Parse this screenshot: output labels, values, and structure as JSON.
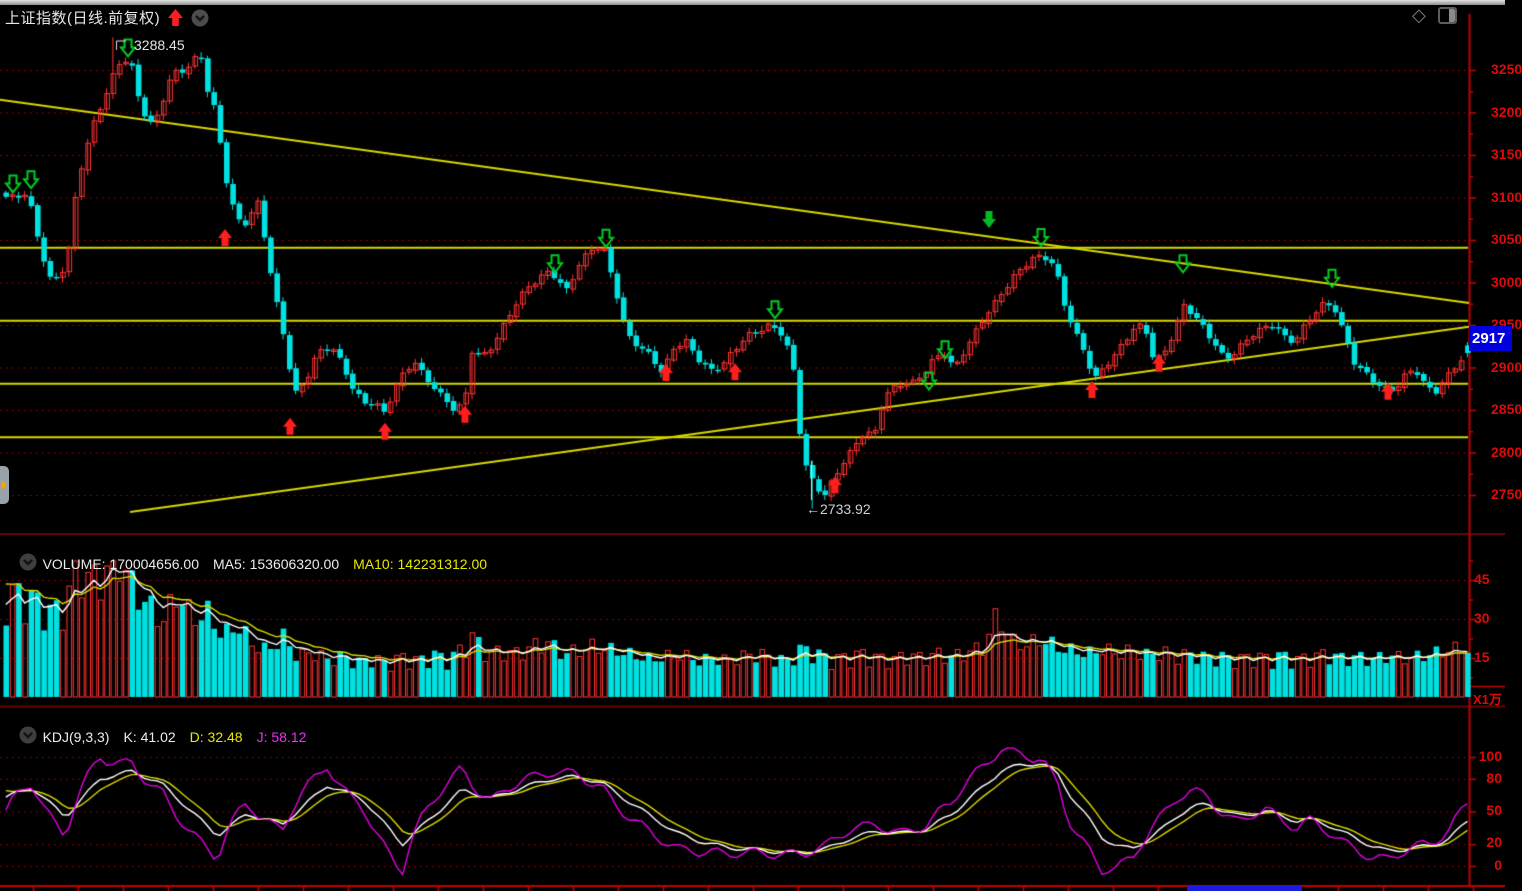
{
  "titlebar": {
    "title": "上证指数(日线.前复权)",
    "signal_arrow_icon": "block-up-arrow-red",
    "collapse_icon": "chevron-down-circle",
    "diamond_icon": "◇",
    "layout_icon": "window-split"
  },
  "main_chart": {
    "high_annotation": "3288.45",
    "low_annotation": "←2733.92",
    "price_tag": "2917",
    "y_axis_labels": [
      "3250",
      "3200",
      "3150",
      "3100",
      "3050",
      "3000",
      "2950",
      "2900",
      "2850",
      "2800",
      "2750"
    ]
  },
  "volume_panel": {
    "volume_label": "VOLUME:",
    "volume_value": "170004656.00",
    "ma5_label": "MA5:",
    "ma5_value": "153606320.00",
    "ma10_label": "MA10:",
    "ma10_value": "142231312.00",
    "y_axis_labels": [
      "45",
      "30",
      "15"
    ],
    "unit_label": "X1万"
  },
  "kdj_panel": {
    "indicator_label": "KDJ(9,3,3)",
    "k_label": "K:",
    "k_value": "41.02",
    "d_label": "D:",
    "d_value": "32.48",
    "j_label": "J:",
    "j_value": "58.12",
    "y_axis_labels": [
      "100",
      "80",
      "50",
      "20",
      "0"
    ]
  },
  "colors": {
    "up": "#ff3232",
    "down": "#00e1e1",
    "ma5": "#ffffff",
    "ma10": "#d8d800",
    "k": "#ffffff",
    "d": "#d8d800",
    "j": "#e000e0",
    "grid": "#b00000",
    "axis": "#c00000",
    "label": "#dd0a0a",
    "trend": "#d8d800",
    "tag_bg": "#0000de",
    "buy_arrow": "#ff1e1e",
    "sell_arrow": "#00cc22"
  },
  "chart_data": {
    "type": "candlestick",
    "instrument": "上证指数",
    "period": "日线",
    "adjustment": "前复权",
    "price_range": [
      2750,
      3250
    ],
    "grid_step": 50,
    "high": 3288.45,
    "low": 2733.92,
    "last": 2917,
    "volume": 170004656.0,
    "volume_ma5": 153606320.0,
    "volume_ma10": 142231312.0,
    "kdj": {
      "params": [
        9,
        3,
        3
      ],
      "k": 41.02,
      "d": 32.48,
      "j": 58.12
    },
    "close_anchors": [
      [
        0,
        3102
      ],
      [
        12,
        3098
      ],
      [
        25,
        3103
      ],
      [
        38,
        3040
      ],
      [
        48,
        3005
      ],
      [
        58,
        3010
      ],
      [
        66,
        3035
      ],
      [
        72,
        3092
      ],
      [
        80,
        3140
      ],
      [
        90,
        3180
      ],
      [
        98,
        3205
      ],
      [
        106,
        3230
      ],
      [
        113,
        3252
      ],
      [
        120,
        3265
      ],
      [
        128,
        3262
      ],
      [
        138,
        3205
      ],
      [
        148,
        3185
      ],
      [
        157,
        3195
      ],
      [
        165,
        3235
      ],
      [
        173,
        3248
      ],
      [
        182,
        3252
      ],
      [
        190,
        3262
      ],
      [
        198,
        3268
      ],
      [
        205,
        3226
      ],
      [
        212,
        3202
      ],
      [
        223,
        3123
      ],
      [
        232,
        3083
      ],
      [
        240,
        3066
      ],
      [
        248,
        3083
      ],
      [
        256,
        3095
      ],
      [
        264,
        3040
      ],
      [
        272,
        2985
      ],
      [
        282,
        2930
      ],
      [
        292,
        2868
      ],
      [
        302,
        2882
      ],
      [
        312,
        2912
      ],
      [
        322,
        2925
      ],
      [
        332,
        2920
      ],
      [
        342,
        2895
      ],
      [
        352,
        2870
      ],
      [
        362,
        2858
      ],
      [
        372,
        2862
      ],
      [
        382,
        2848
      ],
      [
        392,
        2875
      ],
      [
        402,
        2892
      ],
      [
        412,
        2905
      ],
      [
        422,
        2888
      ],
      [
        432,
        2878
      ],
      [
        442,
        2865
      ],
      [
        452,
        2852
      ],
      [
        462,
        2856
      ],
      [
        470,
        2920
      ],
      [
        480,
        2910
      ],
      [
        490,
        2925
      ],
      [
        500,
        2948
      ],
      [
        512,
        2975
      ],
      [
        524,
        2992
      ],
      [
        536,
        3002
      ],
      [
        548,
        3012
      ],
      [
        556,
        3002
      ],
      [
        564,
        2992
      ],
      [
        576,
        3022
      ],
      [
        588,
        3038
      ],
      [
        600,
        3042
      ],
      [
        612,
        2995
      ],
      [
        624,
        2940
      ],
      [
        636,
        2928
      ],
      [
        648,
        2915
      ],
      [
        660,
        2892
      ],
      [
        672,
        2922
      ],
      [
        684,
        2930
      ],
      [
        696,
        2912
      ],
      [
        708,
        2898
      ],
      [
        720,
        2902
      ],
      [
        732,
        2918
      ],
      [
        744,
        2935
      ],
      [
        756,
        2945
      ],
      [
        768,
        2952
      ],
      [
        780,
        2940
      ],
      [
        790,
        2905
      ],
      [
        800,
        2792
      ],
      [
        812,
        2760
      ],
      [
        822,
        2752
      ],
      [
        832,
        2772
      ],
      [
        842,
        2792
      ],
      [
        852,
        2805
      ],
      [
        862,
        2822
      ],
      [
        872,
        2818
      ],
      [
        882,
        2868
      ],
      [
        892,
        2878
      ],
      [
        902,
        2885
      ],
      [
        912,
        2882
      ],
      [
        922,
        2892
      ],
      [
        932,
        2908
      ],
      [
        942,
        2916
      ],
      [
        952,
        2900
      ],
      [
        962,
        2922
      ],
      [
        972,
        2940
      ],
      [
        982,
        2958
      ],
      [
        992,
        2972
      ],
      [
        1002,
        2990
      ],
      [
        1012,
        3008
      ],
      [
        1022,
        3022
      ],
      [
        1032,
        3032
      ],
      [
        1042,
        3030
      ],
      [
        1052,
        3018
      ],
      [
        1062,
        2972
      ],
      [
        1072,
        2942
      ],
      [
        1082,
        2920
      ],
      [
        1092,
        2888
      ],
      [
        1102,
        2902
      ],
      [
        1112,
        2912
      ],
      [
        1122,
        2928
      ],
      [
        1132,
        2945
      ],
      [
        1142,
        2950
      ],
      [
        1152,
        2908
      ],
      [
        1162,
        2920
      ],
      [
        1172,
        2942
      ],
      [
        1182,
        2972
      ],
      [
        1192,
        2958
      ],
      [
        1202,
        2945
      ],
      [
        1212,
        2930
      ],
      [
        1222,
        2912
      ],
      [
        1232,
        2918
      ],
      [
        1242,
        2928
      ],
      [
        1252,
        2938
      ],
      [
        1262,
        2945
      ],
      [
        1272,
        2952
      ],
      [
        1282,
        2938
      ],
      [
        1292,
        2932
      ],
      [
        1302,
        2948
      ],
      [
        1312,
        2962
      ],
      [
        1322,
        2973
      ],
      [
        1332,
        2970
      ],
      [
        1342,
        2940
      ],
      [
        1352,
        2908
      ],
      [
        1362,
        2895
      ],
      [
        1372,
        2882
      ],
      [
        1382,
        2872
      ],
      [
        1392,
        2872
      ],
      [
        1402,
        2890
      ],
      [
        1412,
        2902
      ],
      [
        1422,
        2882
      ],
      [
        1432,
        2870
      ],
      [
        1442,
        2882
      ],
      [
        1452,
        2898
      ],
      [
        1462,
        2912
      ],
      [
        1468,
        2917
      ]
    ],
    "volume_anchors": [
      [
        0,
        35000
      ],
      [
        15,
        36000
      ],
      [
        30,
        34000
      ],
      [
        45,
        30000
      ],
      [
        60,
        30000
      ],
      [
        75,
        45000
      ],
      [
        90,
        40000
      ],
      [
        100,
        42000
      ],
      [
        115,
        50000
      ],
      [
        130,
        38000
      ],
      [
        145,
        32000
      ],
      [
        160,
        26000
      ],
      [
        175,
        36000
      ],
      [
        190,
        27000
      ],
      [
        205,
        29000
      ],
      [
        220,
        21000
      ],
      [
        235,
        25000
      ],
      [
        250,
        18000
      ],
      [
        265,
        16000
      ],
      [
        280,
        21000
      ],
      [
        295,
        14000
      ],
      [
        310,
        15500
      ],
      [
        325,
        13000
      ],
      [
        340,
        14000
      ],
      [
        355,
        12000
      ],
      [
        370,
        13500
      ],
      [
        385,
        11500
      ],
      [
        400,
        14000
      ],
      [
        415,
        12500
      ],
      [
        430,
        15000
      ],
      [
        445,
        13000
      ],
      [
        460,
        17000
      ],
      [
        470,
        21000
      ],
      [
        485,
        15000
      ],
      [
        500,
        16000
      ],
      [
        515,
        15000
      ],
      [
        530,
        17500
      ],
      [
        545,
        19000
      ],
      [
        560,
        15000
      ],
      [
        575,
        16000
      ],
      [
        590,
        17500
      ],
      [
        605,
        16500
      ],
      [
        620,
        15500
      ],
      [
        635,
        14000
      ],
      [
        650,
        13000
      ],
      [
        665,
        14000
      ],
      [
        680,
        14500
      ],
      [
        695,
        12500
      ],
      [
        710,
        13500
      ],
      [
        725,
        12500
      ],
      [
        740,
        14000
      ],
      [
        755,
        15000
      ],
      [
        770,
        13500
      ],
      [
        785,
        12500
      ],
      [
        800,
        17000
      ],
      [
        815,
        15000
      ],
      [
        830,
        13000
      ],
      [
        845,
        14000
      ],
      [
        860,
        15000
      ],
      [
        875,
        13500
      ],
      [
        890,
        13000
      ],
      [
        905,
        14500
      ],
      [
        920,
        13500
      ],
      [
        935,
        15000
      ],
      [
        950,
        14000
      ],
      [
        965,
        15500
      ],
      [
        980,
        17000
      ],
      [
        995,
        28500
      ],
      [
        1010,
        19000
      ],
      [
        1025,
        18000
      ],
      [
        1040,
        20000
      ],
      [
        1055,
        17000
      ],
      [
        1070,
        16000
      ],
      [
        1085,
        15000
      ],
      [
        1100,
        16500
      ],
      [
        1115,
        15000
      ],
      [
        1130,
        16000
      ],
      [
        1145,
        14500
      ],
      [
        1160,
        15500
      ],
      [
        1175,
        14000
      ],
      [
        1190,
        15000
      ],
      [
        1205,
        13500
      ],
      [
        1220,
        14000
      ],
      [
        1235,
        13000
      ],
      [
        1250,
        14000
      ],
      [
        1265,
        13500
      ],
      [
        1280,
        14500
      ],
      [
        1295,
        13000
      ],
      [
        1310,
        14000
      ],
      [
        1325,
        15000
      ],
      [
        1340,
        13500
      ],
      [
        1355,
        14000
      ],
      [
        1370,
        13000
      ],
      [
        1385,
        14500
      ],
      [
        1400,
        13500
      ],
      [
        1415,
        14000
      ],
      [
        1430,
        15000
      ],
      [
        1445,
        16000
      ],
      [
        1460,
        17000
      ]
    ],
    "k_anchors": [
      [
        0,
        62
      ],
      [
        30,
        72
      ],
      [
        63,
        45
      ],
      [
        98,
        80
      ],
      [
        130,
        87
      ],
      [
        160,
        75
      ],
      [
        195,
        45
      ],
      [
        215,
        28
      ],
      [
        245,
        48
      ],
      [
        280,
        38
      ],
      [
        325,
        74
      ],
      [
        360,
        62
      ],
      [
        400,
        20
      ],
      [
        430,
        45
      ],
      [
        460,
        70
      ],
      [
        490,
        62
      ],
      [
        520,
        72
      ],
      [
        550,
        80
      ],
      [
        575,
        82
      ],
      [
        600,
        76
      ],
      [
        625,
        60
      ],
      [
        650,
        45
      ],
      [
        675,
        30
      ],
      [
        700,
        22
      ],
      [
        725,
        17
      ],
      [
        750,
        15
      ],
      [
        775,
        13
      ],
      [
        800,
        12
      ],
      [
        825,
        16
      ],
      [
        850,
        26
      ],
      [
        875,
        32
      ],
      [
        900,
        30
      ],
      [
        925,
        34
      ],
      [
        950,
        48
      ],
      [
        975,
        68
      ],
      [
        1000,
        88
      ],
      [
        1020,
        93
      ],
      [
        1040,
        94
      ],
      [
        1055,
        85
      ],
      [
        1070,
        62
      ],
      [
        1085,
        45
      ],
      [
        1100,
        26
      ],
      [
        1115,
        18
      ],
      [
        1130,
        16
      ],
      [
        1145,
        24
      ],
      [
        1160,
        34
      ],
      [
        1175,
        46
      ],
      [
        1190,
        54
      ],
      [
        1205,
        57
      ],
      [
        1220,
        51
      ],
      [
        1235,
        46
      ],
      [
        1250,
        48
      ],
      [
        1265,
        50
      ],
      [
        1280,
        46
      ],
      [
        1295,
        41
      ],
      [
        1310,
        43
      ],
      [
        1325,
        38
      ],
      [
        1340,
        31
      ],
      [
        1355,
        25
      ],
      [
        1370,
        18
      ],
      [
        1385,
        14
      ],
      [
        1400,
        15
      ],
      [
        1415,
        17
      ],
      [
        1430,
        19
      ],
      [
        1445,
        24
      ],
      [
        1455,
        32
      ],
      [
        1465,
        41
      ]
    ],
    "markers": {
      "buy": [
        [
          225,
          3063
        ],
        [
          290,
          2841
        ],
        [
          385,
          2835
        ],
        [
          465,
          2855
        ],
        [
          666,
          2904
        ],
        [
          735,
          2905
        ],
        [
          835,
          2772
        ],
        [
          1092,
          2884
        ],
        [
          1159,
          2915
        ],
        [
          1388,
          2882
        ]
      ],
      "sell": [
        [
          13,
          3106
        ],
        [
          31,
          3111
        ],
        [
          128,
          3266
        ],
        [
          555,
          3012
        ],
        [
          606,
          3042
        ],
        [
          775,
          2958
        ],
        [
          929,
          2874
        ],
        [
          945,
          2911
        ],
        [
          1041,
          3043
        ],
        [
          1183,
          3012
        ],
        [
          1332,
          2995
        ]
      ],
      "sell_solid": [
        [
          989,
          3064
        ]
      ]
    },
    "trendlines": [
      [
        0,
        3215,
        1469,
        2976
      ],
      [
        130,
        2730,
        1469,
        2948
      ]
    ],
    "horizontal_lines": [
      3041,
      2955,
      2881,
      2818
    ],
    "volume_grid": [
      45000,
      30000,
      15000
    ],
    "kdj_grid": [
      100,
      80,
      50,
      20,
      0
    ]
  }
}
